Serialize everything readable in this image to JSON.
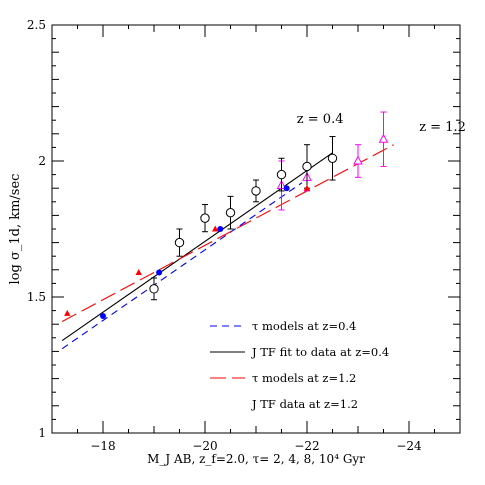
{
  "chart_data": {
    "type": "scatter",
    "xlabel": "M_J AB, z_f=2.0, τ= 2, 4, 8, 10⁴ Gyr",
    "ylabel": "log σ_1d, km/sec",
    "xlim": [
      -17,
      -25
    ],
    "ylim": [
      1,
      2.5
    ],
    "x_ticks": [
      -18,
      -20,
      -22,
      -24
    ],
    "x_tick_labels": [
      "−18",
      "−20",
      "−22",
      "−24"
    ],
    "y_ticks": [
      1,
      1.5,
      2,
      2.5
    ],
    "y_tick_labels": [
      "1",
      "1.5",
      "2",
      "2.5"
    ],
    "grid": false,
    "legend_position": "bottom-right",
    "annotations": [
      {
        "text": "z = 0.4",
        "color": "#0000ff",
        "x": -21.8,
        "y": 2.14
      },
      {
        "text": "z = 1.2",
        "color": "#ff0000",
        "x": -24.2,
        "y": 2.11
      }
    ],
    "series": [
      {
        "name": "τ models at z=0.4",
        "kind": "dashed-line",
        "color": "#0000ff",
        "x": [
          -17.2,
          -21.9
        ],
        "y": [
          1.31,
          1.92
        ]
      },
      {
        "name": "J TF fit to data at z=0.4",
        "kind": "solid-line",
        "color": "#000000",
        "x": [
          -17.2,
          -22.5
        ],
        "y": [
          1.34,
          2.03
        ]
      },
      {
        "name": "τ models at z=1.2",
        "kind": "longdash-line",
        "color": "#ff0000",
        "x": [
          -17.2,
          -23.7
        ],
        "y": [
          1.41,
          2.06
        ]
      },
      {
        "name": "J TF data at z=1.2",
        "kind": "open-triangle-errorbar",
        "color": "#ff00ff",
        "x": [
          -21.5,
          -22.0,
          -23.0,
          -23.5
        ],
        "y": [
          1.91,
          1.94,
          2.0,
          2.08
        ],
        "yerr": [
          0.09,
          0.05,
          0.06,
          0.1
        ]
      },
      {
        "name": "",
        "kind": "open-circle-errorbar",
        "color": "#000000",
        "x": [
          -19.0,
          -19.5,
          -20.0,
          -20.5,
          -21.0,
          -21.5,
          -22.0,
          -22.5
        ],
        "y": [
          1.53,
          1.7,
          1.79,
          1.81,
          1.89,
          1.95,
          1.98,
          2.01
        ],
        "yerr": [
          0.04,
          0.05,
          0.05,
          0.06,
          0.04,
          0.06,
          0.08,
          0.08
        ]
      },
      {
        "name": "",
        "kind": "filled-circle",
        "color": "#0000ff",
        "x": [
          -18.0,
          -19.1,
          -20.3,
          -21.6
        ],
        "y": [
          1.43,
          1.59,
          1.75,
          1.9
        ]
      },
      {
        "name": "",
        "kind": "filled-triangle",
        "color": "#ff0000",
        "x": [
          -17.3,
          -18.7,
          -20.2,
          -22.0
        ],
        "y": [
          1.44,
          1.59,
          1.75,
          1.9
        ]
      }
    ]
  },
  "colors": {
    "axis": "#000000",
    "blue": "#0000ff",
    "red": "#ff0000",
    "magenta": "#ff00ff"
  }
}
